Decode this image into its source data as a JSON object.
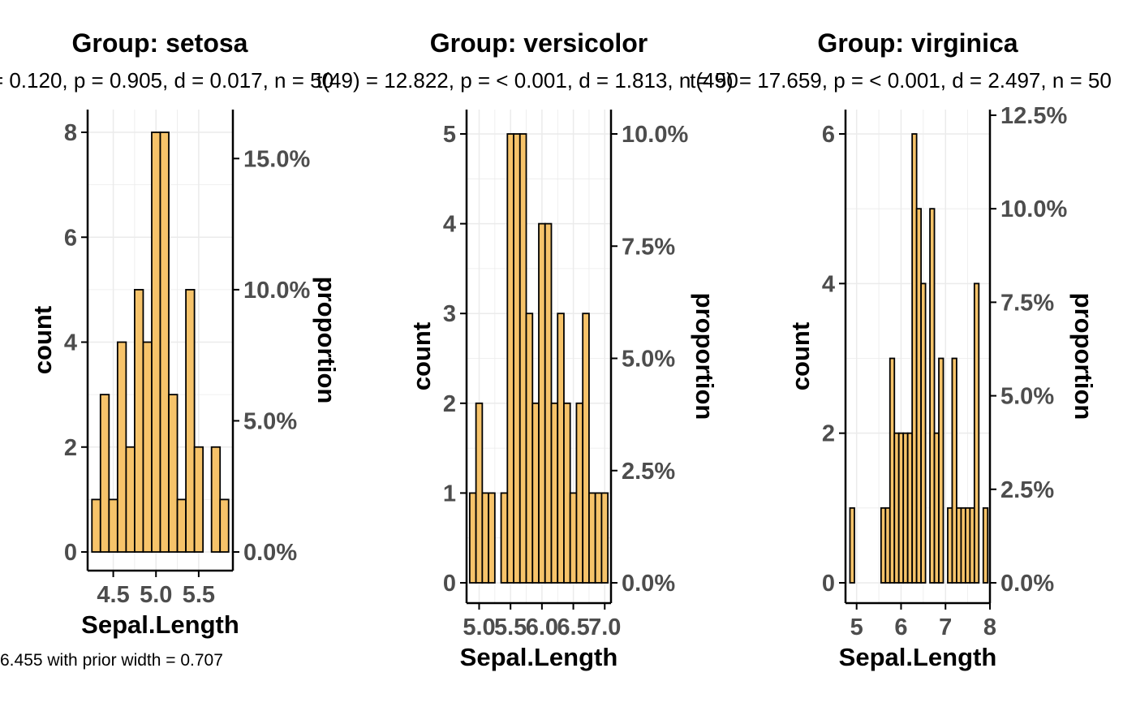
{
  "chart_data": [
    {
      "type": "bar",
      "title": "Group: setosa",
      "subtitle": "= 0.120, p = 0.905, d = 0.017, n = 50",
      "xlabel": "Sepal.Length",
      "ylabel": "count",
      "y2label": "proportion",
      "caption": "6.455 with prior width = 0.707",
      "n": 50,
      "xlim": [
        4.2,
        5.9
      ],
      "ylim": [
        0,
        8
      ],
      "x_ticks": [
        {
          "v": 4.5,
          "label": "4.5"
        },
        {
          "v": 5.0,
          "label": "5.0"
        },
        {
          "v": 5.5,
          "label": "5.5"
        }
      ],
      "y_ticks": [
        {
          "v": 0,
          "label": "0"
        },
        {
          "v": 2,
          "label": "2"
        },
        {
          "v": 4,
          "label": "4"
        },
        {
          "v": 6,
          "label": "6"
        },
        {
          "v": 8,
          "label": "8"
        }
      ],
      "y2_ticks": [
        {
          "v": 0,
          "label": "0.0%"
        },
        {
          "v": 0.05,
          "label": "5.0%"
        },
        {
          "v": 0.1,
          "label": "10.0%"
        },
        {
          "v": 0.15,
          "label": "15.0%"
        }
      ],
      "x": [
        4.3,
        4.4,
        4.5,
        4.6,
        4.7,
        4.8,
        4.9,
        5.0,
        5.1,
        5.2,
        5.3,
        5.4,
        5.5,
        5.6,
        5.7,
        5.8
      ],
      "values": [
        1,
        3,
        1,
        4,
        2,
        5,
        4,
        8,
        8,
        3,
        1,
        5,
        2,
        0,
        2,
        1
      ]
    },
    {
      "type": "bar",
      "title": "Group: versicolor",
      "subtitle": "t(49) = 12.822, p = < 0.001, d = 1.813, n = 50",
      "xlabel": "Sepal.Length",
      "ylabel": "count",
      "y2label": "proportion",
      "n": 50,
      "xlim": [
        4.8,
        7.1
      ],
      "ylim": [
        0,
        5
      ],
      "x_ticks": [
        {
          "v": 5.0,
          "label": "5.0"
        },
        {
          "v": 5.5,
          "label": "5.5"
        },
        {
          "v": 6.0,
          "label": "6.0"
        },
        {
          "v": 6.5,
          "label": "6.5"
        },
        {
          "v": 7.0,
          "label": "7.0"
        }
      ],
      "y_ticks": [
        {
          "v": 0,
          "label": "0"
        },
        {
          "v": 1,
          "label": "1"
        },
        {
          "v": 2,
          "label": "2"
        },
        {
          "v": 3,
          "label": "3"
        },
        {
          "v": 4,
          "label": "4"
        },
        {
          "v": 5,
          "label": "5"
        }
      ],
      "y2_ticks": [
        {
          "v": 0,
          "label": "0.0%"
        },
        {
          "v": 0.025,
          "label": "2.5%"
        },
        {
          "v": 0.05,
          "label": "5.0%"
        },
        {
          "v": 0.075,
          "label": "7.5%"
        },
        {
          "v": 0.1,
          "label": "10.0%"
        }
      ],
      "x": [
        4.9,
        5.0,
        5.1,
        5.2,
        5.3,
        5.4,
        5.5,
        5.6,
        5.7,
        5.8,
        5.9,
        6.0,
        6.1,
        6.2,
        6.3,
        6.4,
        6.5,
        6.6,
        6.7,
        6.8,
        6.9,
        7.0
      ],
      "values": [
        1,
        2,
        1,
        1,
        0,
        1,
        5,
        5,
        5,
        3,
        2,
        4,
        4,
        2,
        3,
        2,
        1,
        2,
        3,
        1,
        1,
        1
      ]
    },
    {
      "type": "bar",
      "title": "Group: virginica",
      "subtitle": "t(49) = 17.659, p = < 0.001, d = 2.497, n = 50",
      "xlabel": "Sepal.Length",
      "ylabel": "count",
      "y2label": "proportion",
      "n": 50,
      "xlim": [
        4.75,
        8.0
      ],
      "ylim": [
        0,
        6
      ],
      "x_ticks": [
        {
          "v": 5,
          "label": "5"
        },
        {
          "v": 6,
          "label": "6"
        },
        {
          "v": 7,
          "label": "7"
        },
        {
          "v": 8,
          "label": "8"
        }
      ],
      "y_ticks": [
        {
          "v": 0,
          "label": "0"
        },
        {
          "v": 2,
          "label": "2"
        },
        {
          "v": 4,
          "label": "4"
        },
        {
          "v": 6,
          "label": "6"
        }
      ],
      "y2_ticks": [
        {
          "v": 0,
          "label": "0.0%"
        },
        {
          "v": 0.025,
          "label": "2.5%"
        },
        {
          "v": 0.05,
          "label": "5.0%"
        },
        {
          "v": 0.075,
          "label": "7.5%"
        },
        {
          "v": 0.1,
          "label": "10.0%"
        },
        {
          "v": 0.125,
          "label": "12.5%"
        }
      ],
      "x": [
        4.9,
        5.0,
        5.1,
        5.2,
        5.3,
        5.4,
        5.5,
        5.6,
        5.7,
        5.8,
        5.9,
        6.0,
        6.1,
        6.2,
        6.3,
        6.4,
        6.5,
        6.6,
        6.7,
        6.8,
        6.9,
        7.0,
        7.1,
        7.2,
        7.3,
        7.4,
        7.5,
        7.6,
        7.7,
        7.8,
        7.9
      ],
      "values": [
        1,
        0,
        0,
        0,
        0,
        0,
        0,
        1,
        1,
        3,
        2,
        2,
        2,
        2,
        6,
        5,
        4,
        0,
        5,
        2,
        3,
        0,
        1,
        3,
        1,
        1,
        1,
        1,
        4,
        0,
        1
      ]
    }
  ],
  "colors": {
    "bar_fill": "#f6c36a",
    "bar_stroke": "#000000",
    "grid": "#ebebeb",
    "axis": "#000000",
    "tick_text": "#4d4d4d"
  }
}
